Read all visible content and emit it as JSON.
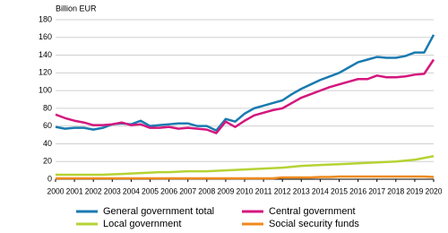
{
  "chart_data": {
    "type": "line",
    "y_label": "Billion EUR",
    "x": [
      2000,
      2000.5,
      2001,
      2001.5,
      2002,
      2002.5,
      2003,
      2003.5,
      2004,
      2004.5,
      2005,
      2005.5,
      2006,
      2006.5,
      2007,
      2007.5,
      2008,
      2008.5,
      2009,
      2009.5,
      2010,
      2010.5,
      2011,
      2011.5,
      2012,
      2012.5,
      2013,
      2013.5,
      2014,
      2014.5,
      2015,
      2015.5,
      2016,
      2016.5,
      2017,
      2017.5,
      2018,
      2018.5,
      2019,
      2019.5,
      2020
    ],
    "xlim": [
      2000,
      2020
    ],
    "xticks": [
      2000,
      2001,
      2002,
      2003,
      2004,
      2005,
      2006,
      2007,
      2008,
      2009,
      2010,
      2011,
      2012,
      2013,
      2014,
      2015,
      2016,
      2017,
      2018,
      2019,
      2020
    ],
    "ylim": [
      0,
      180
    ],
    "yticks": [
      0,
      20,
      40,
      60,
      80,
      100,
      120,
      140,
      160,
      180
    ],
    "grid": true,
    "series": [
      {
        "name": "General government total",
        "color": "#1a7ab0",
        "values": [
          59,
          57,
          58,
          58,
          56,
          58,
          62,
          63,
          62,
          66,
          60,
          61,
          62,
          63,
          63,
          60,
          60,
          55,
          68,
          65,
          74,
          80,
          83,
          86,
          89,
          96,
          102,
          107,
          112,
          116,
          120,
          126,
          132,
          135,
          138,
          137,
          137,
          139,
          143,
          143,
          163
        ]
      },
      {
        "name": "Central government",
        "color": "#d4177e",
        "values": [
          73,
          69,
          66,
          64,
          61,
          61,
          62,
          64,
          61,
          62,
          58,
          58,
          59,
          57,
          58,
          57,
          56,
          52,
          65,
          59,
          66,
          72,
          75,
          78,
          80,
          86,
          92,
          96,
          100,
          104,
          107,
          110,
          113,
          113,
          117,
          115,
          115,
          116,
          118,
          119,
          135
        ]
      },
      {
        "name": "Local government",
        "color": "#b5d334",
        "values": [
          5,
          5,
          5,
          5,
          5,
          5,
          5.5,
          6,
          6.5,
          7,
          7.5,
          8,
          8,
          8.5,
          9,
          9,
          9,
          9.5,
          10,
          10.5,
          11,
          11.5,
          12,
          12.5,
          13,
          14,
          15,
          15.5,
          16,
          16.5,
          17,
          17.5,
          18,
          18.5,
          19,
          19.5,
          20,
          21,
          22,
          24,
          26
        ]
      },
      {
        "name": "Social security funds",
        "color": "#f08a1c",
        "values": [
          1,
          1,
          1,
          1,
          1,
          1,
          1,
          1,
          1,
          1,
          1,
          1,
          1,
          1,
          1,
          1,
          1,
          1,
          1,
          1,
          1,
          1,
          1,
          1,
          2,
          2,
          2,
          2,
          2.5,
          2.5,
          3,
          3,
          3,
          3,
          3,
          3,
          3,
          3,
          3,
          3,
          2.5
        ]
      }
    ]
  }
}
